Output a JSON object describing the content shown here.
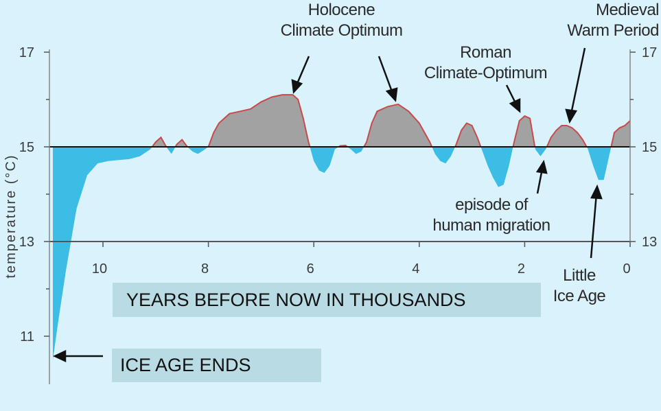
{
  "colors": {
    "background": "#d9f2fb",
    "warm_fill": "#a2a2a2",
    "warm_outline": "#c84a4a",
    "cold_fill": "#3bbde6",
    "baseline": "#111111"
  },
  "chart_data": {
    "type": "area",
    "ylabel": "temperature (°C)",
    "xlim": [
      11,
      0
    ],
    "ylim": [
      10,
      17.1
    ],
    "baseline": 15,
    "x_ticks": [
      "10",
      "8",
      "6",
      "4",
      "2",
      "0"
    ],
    "y_ticks_left": [
      "17",
      "15",
      "13",
      "11"
    ],
    "y_ticks_right": [
      "17",
      "15",
      "13"
    ],
    "series": [
      {
        "x": [
          10.95,
          10.85,
          10.7,
          10.5,
          10.3,
          10.1,
          9.9,
          9.7,
          9.5,
          9.3,
          9.1,
          9.0,
          8.9,
          8.8,
          8.7,
          8.6,
          8.5,
          8.4,
          8.3,
          8.2,
          8.1,
          8.0,
          7.9,
          7.8,
          7.6,
          7.4,
          7.2,
          7.0,
          6.8,
          6.6,
          6.4,
          6.3,
          6.2,
          6.1,
          6.0,
          5.9,
          5.8,
          5.7,
          5.6,
          5.5,
          5.4,
          5.3,
          5.2,
          5.1,
          5.0,
          4.9,
          4.8,
          4.6,
          4.4,
          4.2,
          4.0,
          3.8,
          3.7,
          3.6,
          3.5,
          3.4,
          3.3,
          3.2,
          3.1,
          3.0,
          2.9,
          2.8,
          2.7,
          2.6,
          2.5,
          2.4,
          2.3,
          2.2,
          2.1,
          2.0,
          1.9,
          1.8,
          1.7,
          1.6,
          1.5,
          1.4,
          1.3,
          1.2,
          1.1,
          1.0,
          0.9,
          0.8,
          0.7,
          0.6,
          0.5,
          0.4,
          0.3,
          0.2,
          0.1,
          0.0
        ],
        "values": [
          10.5,
          11.3,
          12.4,
          13.7,
          14.4,
          14.65,
          14.7,
          14.72,
          14.74,
          14.8,
          14.95,
          15.1,
          15.2,
          15.0,
          14.85,
          15.05,
          15.15,
          15.0,
          14.9,
          14.85,
          14.92,
          15.0,
          15.3,
          15.5,
          15.7,
          15.75,
          15.8,
          15.95,
          16.05,
          16.1,
          16.1,
          16.0,
          15.6,
          15.1,
          14.7,
          14.5,
          14.45,
          14.6,
          14.95,
          15.02,
          15.03,
          14.95,
          14.85,
          14.9,
          15.1,
          15.5,
          15.75,
          15.85,
          15.9,
          15.75,
          15.5,
          15.1,
          14.85,
          14.7,
          14.65,
          14.8,
          15.05,
          15.35,
          15.5,
          15.45,
          15.2,
          14.9,
          14.6,
          14.35,
          14.15,
          14.2,
          14.6,
          15.1,
          15.55,
          15.65,
          15.6,
          14.95,
          14.8,
          14.95,
          15.2,
          15.35,
          15.45,
          15.45,
          15.4,
          15.3,
          15.15,
          14.95,
          14.6,
          14.3,
          14.3,
          14.8,
          15.3,
          15.4,
          15.45,
          15.55
        ]
      }
    ],
    "annotations": [
      {
        "text": "Holocene\nClimate Optimum",
        "x": 6.35,
        "y": 16.1
      },
      {
        "text": "Roman\nClimate-Optimum",
        "x": 2.05,
        "y": 15.65
      },
      {
        "text": "Medieval\nWarm Period",
        "x": 1.2,
        "y": 15.45
      },
      {
        "text": "episode of\nhuman migration",
        "x": 1.75,
        "y": 14.85
      },
      {
        "text": "Little\nIce Age",
        "x": 0.6,
        "y": 14.3
      }
    ],
    "boxes": [
      "YEARS BEFORE NOW IN THOUSANDS",
      "ICE AGE ENDS"
    ]
  }
}
